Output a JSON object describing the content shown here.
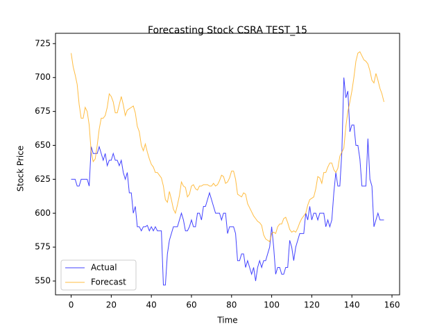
{
  "chart_data": {
    "type": "line",
    "title": "Forecasting Stock CSRA TEST_15",
    "xlabel": "Time",
    "ylabel": "Stock Price",
    "x": [
      0,
      1,
      2,
      3,
      4,
      5,
      6,
      7,
      8,
      9,
      10,
      11,
      12,
      13,
      14,
      15,
      16,
      17,
      18,
      19,
      20,
      21,
      22,
      23,
      24,
      25,
      26,
      27,
      28,
      29,
      30,
      31,
      32,
      33,
      34,
      35,
      36,
      37,
      38,
      39,
      40,
      41,
      42,
      43,
      44,
      45,
      46,
      47,
      48,
      49,
      50,
      51,
      52,
      53,
      54,
      55,
      56,
      57,
      58,
      59,
      60,
      61,
      62,
      63,
      64,
      65,
      66,
      67,
      68,
      69,
      70,
      71,
      72,
      73,
      74,
      75,
      76,
      77,
      78,
      79,
      80,
      81,
      82,
      83,
      84,
      85,
      86,
      87,
      88,
      89,
      90,
      91,
      92,
      93,
      94,
      95,
      96,
      97,
      98,
      99,
      100,
      101,
      102,
      103,
      104,
      105,
      106,
      107,
      108,
      109,
      110,
      111,
      112,
      113,
      114,
      115,
      116,
      117,
      118,
      119,
      120,
      121,
      122,
      123,
      124,
      125,
      126,
      127,
      128,
      129,
      130,
      131,
      132,
      133,
      134,
      135,
      136,
      137,
      138,
      139,
      140,
      141,
      142,
      143,
      144,
      145,
      146,
      147,
      148,
      149,
      150,
      151,
      152,
      153,
      154,
      155,
      156
    ],
    "series": [
      {
        "name": "Actual",
        "color": "blue",
        "values": [
          625,
          625,
          625,
          620,
          620,
          625,
          625,
          625,
          625,
          620,
          649,
          644,
          644,
          644,
          649,
          644,
          639,
          644,
          635,
          639,
          639,
          644,
          639,
          639,
          635,
          639,
          630,
          625,
          630,
          615,
          615,
          600,
          605,
          590,
          590,
          587,
          590,
          590,
          591,
          587,
          590,
          587,
          590,
          587,
          587,
          587,
          547,
          547,
          570,
          580,
          585,
          590,
          590,
          590,
          595,
          600,
          595,
          587,
          587,
          590,
          595,
          590,
          590,
          600,
          600,
          595,
          605,
          605,
          610,
          615,
          610,
          605,
          600,
          600,
          600,
          595,
          600,
          600,
          585,
          590,
          590,
          590,
          585,
          565,
          565,
          570,
          570,
          560,
          565,
          560,
          555,
          560,
          550,
          560,
          565,
          560,
          565,
          565,
          570,
          575,
          590,
          575,
          555,
          560,
          560,
          555,
          555,
          560,
          560,
          580,
          575,
          565,
          575,
          580,
          585,
          585,
          585,
          600,
          595,
          605,
          595,
          600,
          600,
          595,
          600,
          600,
          600,
          590,
          595,
          590,
          595,
          615,
          630,
          620,
          620,
          645,
          700,
          685,
          690,
          660,
          665,
          665,
          650,
          650,
          640,
          620,
          620,
          620,
          655,
          625,
          620,
          590,
          595,
          600,
          595,
          595,
          595
        ]
      },
      {
        "name": "Forecast",
        "color": "orange",
        "values": [
          718,
          708,
          702,
          695,
          680,
          670,
          670,
          678,
          675,
          665,
          645,
          638,
          640,
          650,
          662,
          670,
          670,
          672,
          678,
          688,
          686,
          682,
          674,
          674,
          680,
          686,
          680,
          672,
          676,
          677,
          678,
          679,
          674,
          664,
          660,
          650,
          646,
          651,
          645,
          640,
          636,
          634,
          630,
          630,
          628,
          626,
          620,
          610,
          608,
          616,
          610,
          603,
          600,
          606,
          613,
          623,
          620,
          619,
          612,
          614,
          620,
          621,
          618,
          617,
          620,
          620,
          621,
          621,
          621,
          620,
          620,
          622,
          620,
          621,
          624,
          628,
          627,
          622,
          623,
          626,
          631,
          631,
          625,
          614,
          613,
          612,
          615,
          614,
          607,
          604,
          601,
          598,
          596,
          594,
          593,
          591,
          584,
          581,
          580,
          579,
          585,
          586,
          585,
          590,
          592,
          592,
          596,
          597,
          593,
          588,
          586,
          587,
          586,
          589,
          593,
          596,
          598,
          600,
          606,
          610,
          611,
          612,
          618,
          627,
          626,
          622,
          630,
          630,
          634,
          637,
          637,
          632,
          630,
          633,
          642,
          645,
          648,
          664,
          675,
          682,
          690,
          700,
          712,
          718,
          719,
          716,
          713,
          712,
          710,
          705,
          698,
          696,
          703,
          698,
          692,
          688,
          682
        ]
      }
    ],
    "xlim": [
      -7.8,
      163.8
    ],
    "ylim": [
      539.8,
      732.6
    ],
    "xticks": [
      0,
      20,
      40,
      60,
      80,
      100,
      120,
      140,
      160
    ],
    "yticks": [
      550,
      575,
      600,
      625,
      650,
      675,
      700,
      725
    ],
    "legend": "lower left"
  }
}
